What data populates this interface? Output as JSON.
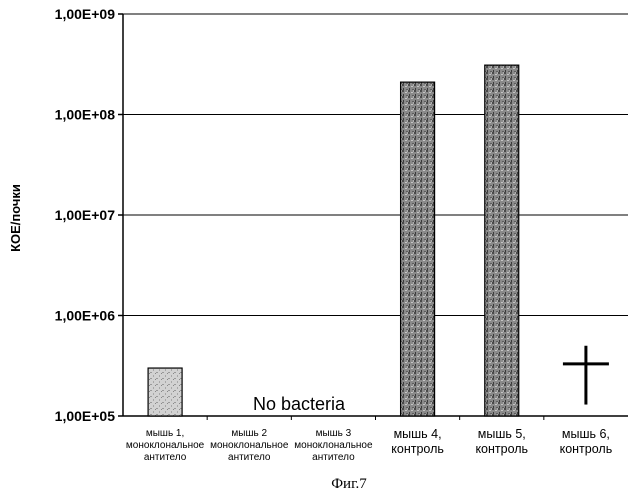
{
  "chart_data": {
    "type": "bar",
    "yscale": "log",
    "ylabel": "КОЕ/почки",
    "ylim": [
      100000,
      1000000000
    ],
    "yticks": [
      "1,00E+05",
      "1,00E+06",
      "1,00E+07",
      "1,00E+08",
      "1,00E+09"
    ],
    "grid": true,
    "categories": [
      "мышь 1, моноклональное антитело",
      "мышь 2 моноклональное антитело",
      "мышь 3 моноклональное антитело",
      "мышь 4, контроль",
      "мышь 5, контроль",
      "мышь 6, контроль"
    ],
    "category_lines": [
      [
        "мышь 1,",
        "моноклональное",
        "антитело"
      ],
      [
        "мышь 2",
        "моноклональное",
        "антитело"
      ],
      [
        "мышь 3",
        "моноклональное",
        "антитело"
      ],
      [
        "мышь 4,",
        "контроль"
      ],
      [
        "мышь 5,",
        "контроль"
      ],
      [
        "мышь 6,",
        "контроль"
      ]
    ],
    "values": [
      300000,
      null,
      null,
      210000000,
      310000000,
      null
    ],
    "annotations": [
      "No bacteria"
    ],
    "markers": [
      {
        "category_index": 5,
        "symbol": "cross",
        "meaning": "died"
      }
    ]
  },
  "caption": "Фиг.7"
}
